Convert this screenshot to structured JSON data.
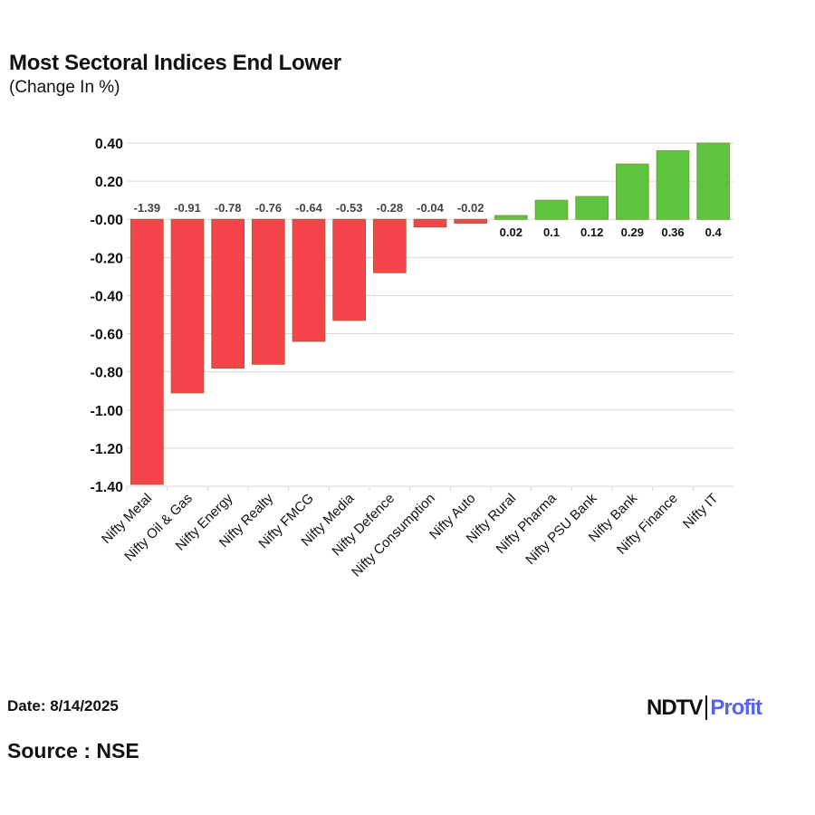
{
  "chart_data": {
    "type": "bar",
    "title": "Most Sectoral Indices End Lower",
    "subtitle": "(Change In %)",
    "categories": [
      "Nifty Metal",
      "Nifty Oil & Gas",
      "Nifty Energy",
      "Nifty Realty",
      "Nifty FMCG",
      "Nifty Media",
      "Nifty Defence",
      "Nifty Consumption",
      "Nifty Auto",
      "Nifty Rural",
      "Nifty Pharma",
      "Nifty PSU Bank",
      "Nifty Bank",
      "Nifty Finance",
      "Nifty IT"
    ],
    "values": [
      -1.39,
      -0.91,
      -0.78,
      -0.76,
      -0.64,
      -0.53,
      -0.28,
      -0.04,
      -0.02,
      0.02,
      0.1,
      0.12,
      0.29,
      0.36,
      0.4
    ],
    "data_labels": [
      "-1.39",
      "-0.91",
      "-0.78",
      "-0.76",
      "-0.64",
      "-0.53",
      "-0.28",
      "-0.04",
      "-0.02",
      "0.02",
      "0.1",
      "0.12",
      "0.29",
      "0.36",
      "0.4"
    ],
    "yticks": [
      "0.40",
      "0.20",
      "-0.00",
      "-0.20",
      "-0.40",
      "-0.60",
      "-0.80",
      "-1.00",
      "-1.20",
      "-1.40"
    ],
    "ylim": [
      -1.4,
      0.4
    ],
    "grid": true,
    "colors": {
      "negative": "#f5444c",
      "positive": "#5ec440",
      "negative_edge": "#a0623c",
      "positive_edge": "#7aa03a"
    }
  },
  "footer": {
    "date": "Date: 8/14/2025",
    "source": "Source : NSE"
  },
  "logo": {
    "brand": "NDTV",
    "product": "Profit"
  }
}
